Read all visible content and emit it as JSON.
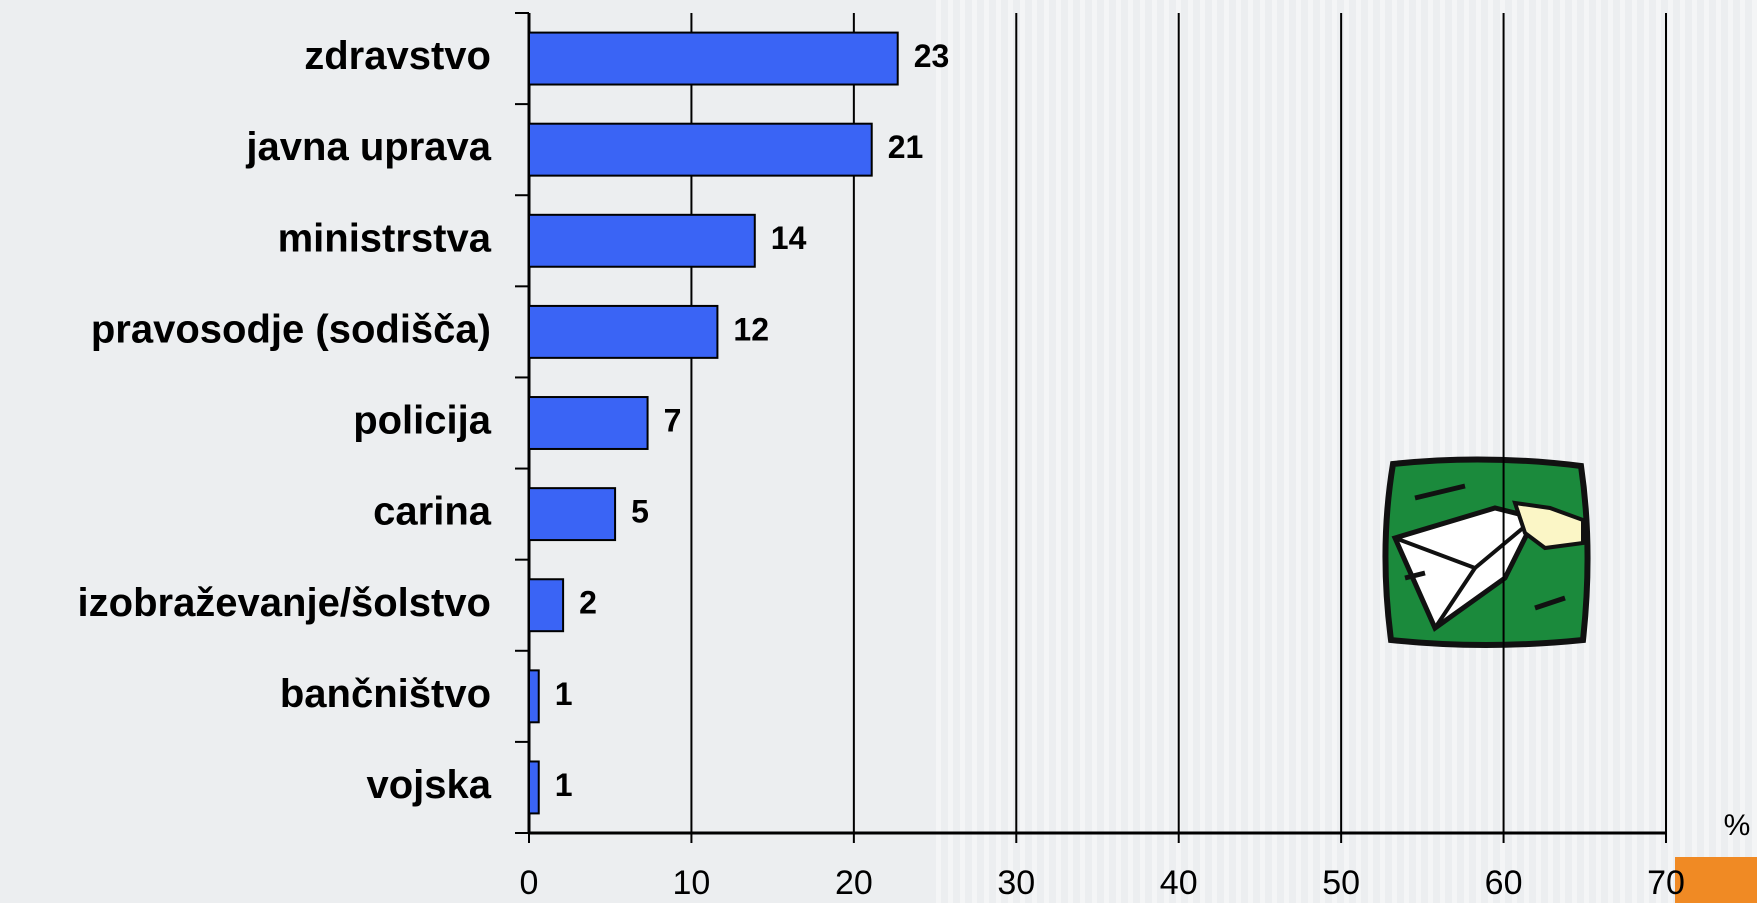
{
  "chart_data": {
    "type": "bar",
    "orientation": "horizontal",
    "categories": [
      "zdravstvo",
      "javna uprava",
      "ministrstva",
      "pravosodje (sodišča)",
      "policija",
      "carina",
      "izobraževanje/šolstvo",
      "bančništvo",
      "vojska"
    ],
    "values": [
      22.7,
      21.1,
      13.9,
      11.6,
      7.3,
      5.3,
      2.1,
      0.6,
      0.6
    ],
    "value_labels": [
      "23",
      "21",
      "14",
      "12",
      "7",
      "5",
      "2",
      "1",
      "1"
    ],
    "color": "#3a64f5",
    "xlim": [
      0,
      70
    ],
    "xticks": [
      0,
      10,
      20,
      30,
      40,
      50,
      60,
      70
    ],
    "x_unit": "%",
    "grid": true
  }
}
